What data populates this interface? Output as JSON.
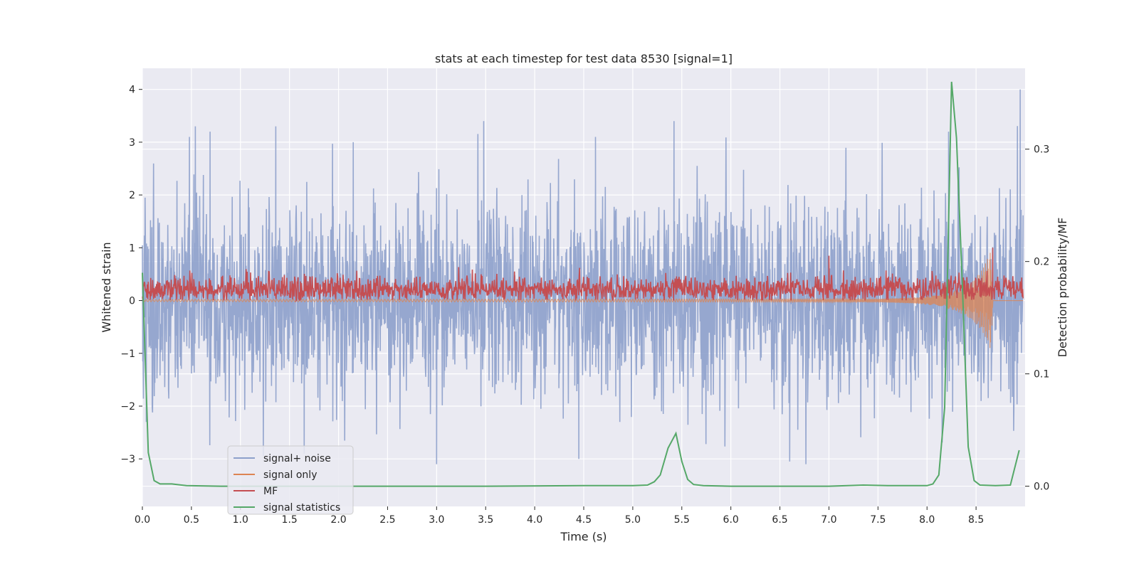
{
  "chart_data": {
    "type": "line",
    "title": "stats at each timestep for test data 8530 [signal=1]",
    "xlabel": "Time (s)",
    "ylabel": "Whitened strain",
    "y2label": "Detection probability/MF",
    "xlim": [
      0.0,
      9.0
    ],
    "ylim": [
      -3.9,
      4.4
    ],
    "y2lim": [
      -0.018,
      0.372
    ],
    "xticks": [
      "0.0",
      "0.5",
      "1.0",
      "1.5",
      "2.0",
      "2.5",
      "3.0",
      "3.5",
      "4.0",
      "4.5",
      "5.0",
      "5.5",
      "6.0",
      "6.5",
      "7.0",
      "7.5",
      "8.0",
      "8.5"
    ],
    "yticks": [
      "4",
      "3",
      "2",
      "1",
      "0",
      "−1",
      "−2",
      "−3"
    ],
    "y2ticks": [
      "0.3",
      "0.2",
      "0.1",
      "0.0"
    ],
    "grid": true,
    "legend_position": "lower-left",
    "colors": {
      "background": "#eaeaf2",
      "grid": "#ffffff",
      "signal_noise": "#8da0cb",
      "signal_only": "#dd8452",
      "mf": "#c44e52",
      "signal_statistics": "#55a868"
    },
    "series": [
      {
        "name": "signal+ noise",
        "axis": "left",
        "description_values": "noise-like strain fluctuating roughly between -3.1 and 4.0",
        "envelope": {
          "min": -3.1,
          "max": 4.0
        },
        "peaks": [
          {
            "x": 0.48,
            "y": 3.1
          },
          {
            "x": 0.54,
            "y": 3.3
          },
          {
            "x": 0.69,
            "y": 3.2
          },
          {
            "x": 1.36,
            "y": 3.3
          },
          {
            "x": 2.15,
            "y": 3.0
          },
          {
            "x": 3.48,
            "y": 3.4
          },
          {
            "x": 4.62,
            "y": 3.1
          },
          {
            "x": 5.42,
            "y": 3.4
          },
          {
            "x": 8.22,
            "y": 3.2
          },
          {
            "x": 8.95,
            "y": 4.0
          }
        ],
        "troughs": [
          {
            "x": 0.04,
            "y": -2.3
          },
          {
            "x": 3.0,
            "y": -3.1
          },
          {
            "x": 6.6,
            "y": -3.05
          },
          {
            "x": 4.45,
            "y": -3.0
          },
          {
            "x": 1.65,
            "y": -2.9
          }
        ]
      },
      {
        "name": "signal only",
        "axis": "left",
        "x": [
          0.0,
          7.5,
          7.9,
          8.1,
          8.3,
          8.45,
          8.55,
          8.62,
          8.66,
          8.67,
          9.0
        ],
        "amplitude": [
          0.02,
          0.03,
          0.06,
          0.1,
          0.2,
          0.35,
          0.55,
          0.8,
          1.0,
          0.0,
          0.0
        ]
      },
      {
        "name": "MF",
        "axis": "left",
        "description_values": "non-negative trace mostly between 0.0 and 0.6 with spikes to ~0.85 at 7.0 s and ~1.0 at 8.67 s",
        "range": [
          0.0,
          1.0
        ]
      },
      {
        "name": "signal statistics",
        "axis": "right",
        "x": [
          0.0,
          0.06,
          0.12,
          0.18,
          0.3,
          0.45,
          0.8,
          1.5,
          2.5,
          3.5,
          4.5,
          5.0,
          5.15,
          5.22,
          5.28,
          5.36,
          5.44,
          5.5,
          5.56,
          5.62,
          5.72,
          6.0,
          7.0,
          7.35,
          7.6,
          8.0,
          8.06,
          8.12,
          8.18,
          8.25,
          8.3,
          8.36,
          8.42,
          8.48,
          8.54,
          8.7,
          8.85,
          8.94
        ],
        "y": [
          0.19,
          0.03,
          0.005,
          0.002,
          0.002,
          0.0005,
          0.0,
          0.0,
          0.0,
          0.0,
          0.0005,
          0.0005,
          0.001,
          0.004,
          0.01,
          0.034,
          0.047,
          0.022,
          0.006,
          0.0015,
          0.0005,
          0.0,
          0.0,
          0.001,
          0.0005,
          0.0005,
          0.002,
          0.01,
          0.07,
          0.36,
          0.31,
          0.18,
          0.035,
          0.005,
          0.001,
          0.0005,
          0.001,
          0.032
        ]
      }
    ]
  }
}
